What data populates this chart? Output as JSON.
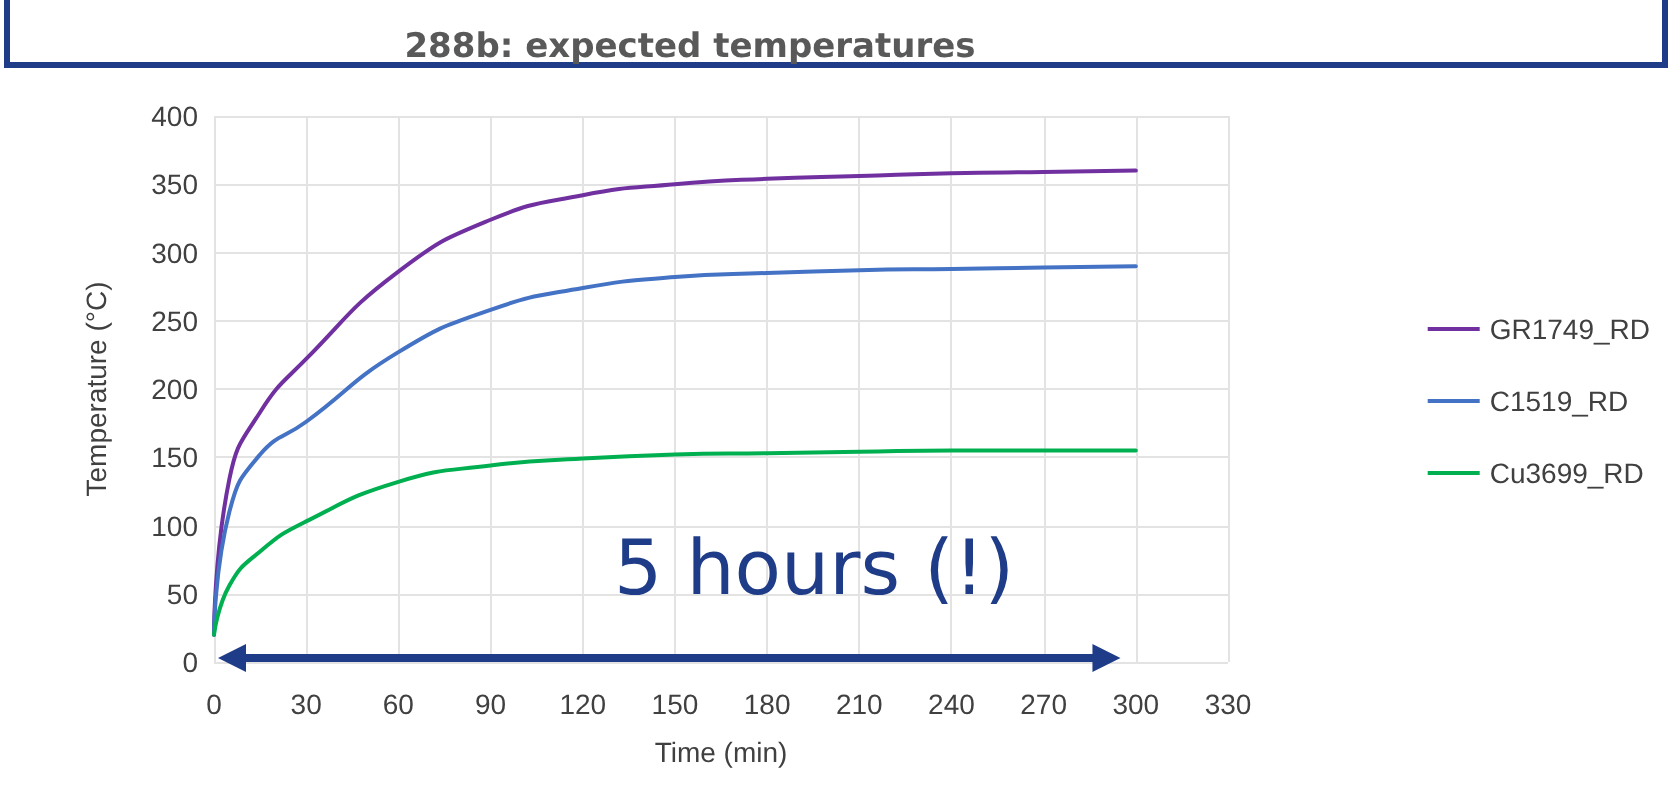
{
  "chart_data": {
    "type": "line",
    "title": "288b: expected temperatures",
    "xlabel": "Time (min)",
    "ylabel": "Temperature (°C)",
    "x": [
      0,
      5,
      15,
      30,
      60,
      90,
      120,
      150,
      180,
      210,
      240,
      270,
      300
    ],
    "series": [
      {
        "name": "GR1749_RD",
        "color": "#7030a0",
        "values": [
          20,
          134,
          183,
          222,
          286,
          324,
          342,
          350,
          354,
          356,
          358,
          359,
          360
        ]
      },
      {
        "name": "C1519_RD",
        "color": "#4472c4",
        "values": [
          20,
          110,
          152,
          176,
          227,
          258,
          274,
          282,
          285,
          287,
          288,
          289,
          290
        ]
      },
      {
        "name": "Cu3699_RD",
        "color": "#00b050",
        "values": [
          20,
          56,
          81,
          103,
          132,
          144,
          149,
          152,
          153,
          154,
          155,
          155,
          155
        ]
      }
    ],
    "annotations": [
      "5 hours (!)"
    ],
    "xlim": [
      0,
      330
    ],
    "xticks": [
      0,
      30,
      60,
      90,
      120,
      150,
      180,
      210,
      240,
      270,
      300,
      330
    ],
    "ylim": [
      0,
      400
    ],
    "yticks": [
      0,
      50,
      100,
      150,
      200,
      250,
      300,
      350,
      400
    ],
    "grid": true,
    "legend": "right",
    "marker": "none",
    "line_style": "solid"
  }
}
